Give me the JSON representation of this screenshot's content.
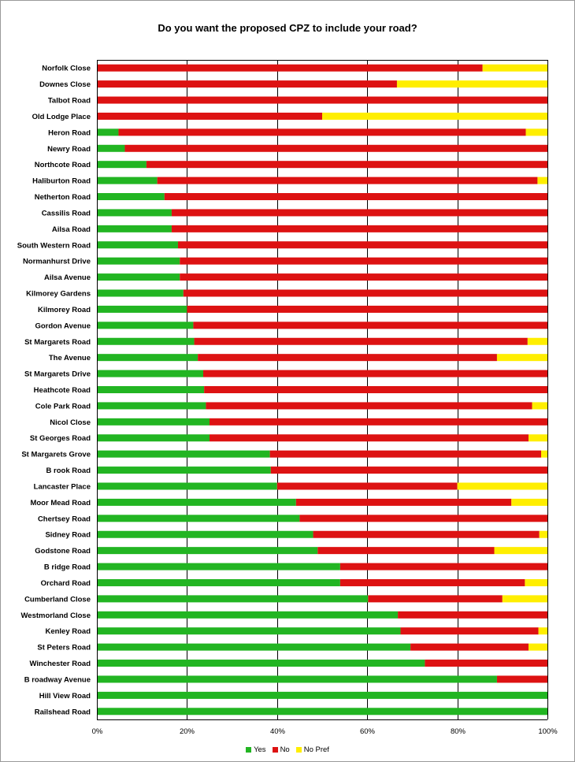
{
  "chart_data": {
    "type": "bar",
    "orientation": "horizontal",
    "stacked": true,
    "title": "Do you want the proposed CPZ to include your road?",
    "xlabel": "",
    "ylabel": "",
    "xlim": [
      0,
      100
    ],
    "x_ticks": [
      "0%",
      "20%",
      "40%",
      "60%",
      "80%",
      "100%"
    ],
    "grid": true,
    "legend_position": "bottom",
    "categories": [
      "Norfolk Close",
      "Downes Close",
      "Talbot Road",
      "Old Lodge Place",
      "Heron Road",
      "Newry Road",
      "Northcote Road",
      "Haliburton Road",
      "Netherton Road",
      "Cassilis Road",
      "Ailsa Road",
      "South Western Road",
      "Normanhurst Drive",
      "Ailsa Avenue",
      "Kilmorey Gardens",
      "Kilmorey Road",
      "Gordon Avenue",
      "St Margarets Road",
      "The Avenue",
      "St Margarets Drive",
      "Heathcote Road",
      "Cole Park Road",
      "Nicol Close",
      "St Georges Road",
      "St Margarets Grove",
      "B rook Road",
      "Lancaster Place",
      "Moor Mead Road",
      "Chertsey Road",
      "Sidney Road",
      "Godstone Road",
      "B ridge Road",
      "Orchard Road",
      "Cumberland Close",
      "Westmorland Close",
      "Kenley Road",
      "St Peters Road",
      "Winchester Road",
      "B roadway Avenue",
      "Hill View Road",
      "Railshead Road"
    ],
    "series": [
      {
        "name": "Yes",
        "color": "#22b522",
        "values": [
          0,
          0,
          0,
          0,
          4.8,
          6.2,
          11,
          13.4,
          15,
          16.6,
          16.6,
          18,
          18.4,
          18.4,
          19.2,
          20,
          21.4,
          21.6,
          22.4,
          23.6,
          23.8,
          24.2,
          25,
          25,
          38.4,
          38.6,
          40,
          44.2,
          45,
          48,
          49,
          54,
          54,
          60.2,
          66.8,
          67.4,
          69.6,
          72.8,
          88.8,
          100,
          100
        ]
      },
      {
        "name": "No",
        "color": "#dd1212",
        "values": [
          85.6,
          66.6,
          100,
          50,
          90.4,
          93.8,
          89,
          84.4,
          85,
          83.4,
          83.4,
          82,
          81.6,
          81.6,
          80.8,
          80,
          78.6,
          74,
          66.4,
          76.4,
          76.2,
          72.4,
          75,
          70.8,
          60.2,
          61.4,
          40,
          47.8,
          55,
          50.2,
          39.2,
          46,
          41,
          29.8,
          33.2,
          30.6,
          26.2,
          27.2,
          11.2,
          0,
          0
        ]
      },
      {
        "name": "No Pref",
        "color": "#ffee00",
        "values": [
          14.4,
          33.4,
          0,
          50,
          4.8,
          0,
          0,
          2.2,
          0,
          0,
          0,
          0,
          0,
          0,
          0,
          0,
          0,
          4.4,
          11.2,
          0,
          0,
          3.4,
          0,
          4.2,
          1.4,
          0,
          20,
          8,
          0,
          1.8,
          11.8,
          0,
          5,
          10,
          0,
          2,
          4.2,
          0,
          0,
          0,
          0
        ]
      }
    ]
  }
}
